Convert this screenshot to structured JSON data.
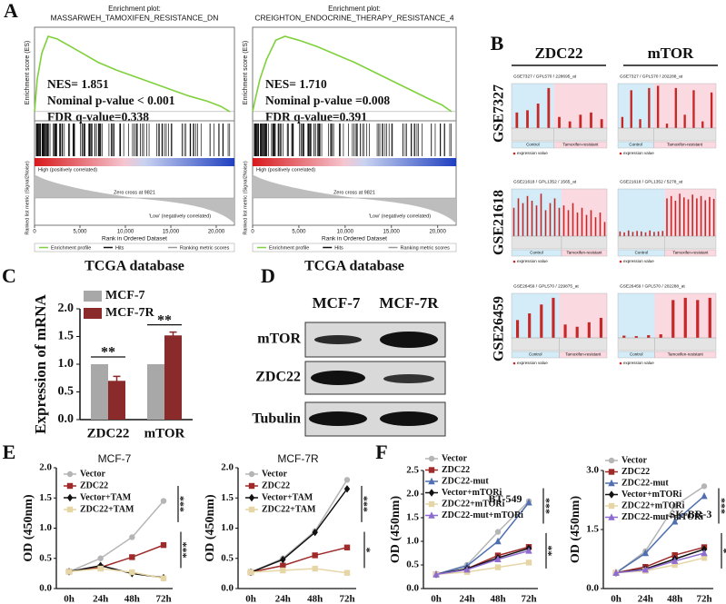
{
  "panel_labels": [
    "A",
    "B",
    "C",
    "D",
    "E",
    "F"
  ],
  "panel_b": {
    "columns": [
      "ZDC22",
      "mTOR"
    ],
    "rows": [
      "GSE7327",
      "GSE21618",
      "GSE26459"
    ]
  },
  "panel_d": {
    "lanes": [
      "MCF-7",
      "MCF-7R"
    ],
    "proteins": [
      "mTOR",
      "ZDC22",
      "Tubulin"
    ]
  },
  "chart_data": [
    {
      "type": "gsea",
      "title": "Enrichment plot:",
      "subtitle": "MASSARWEH_TAMOXIFEN_RESISTANCE_DN",
      "ylabel": "Enrichment score (ES)",
      "ylabel2": "Ranked list metric (Signal2Noise)",
      "xlabel": "Rank in Ordered Dataset",
      "x": [
        0,
        300,
        800,
        1500,
        2500,
        3500,
        5000,
        7000,
        9000,
        11000,
        13000,
        15000,
        17000,
        19000,
        20500,
        21500
      ],
      "values": [
        0,
        0.25,
        0.45,
        0.58,
        0.56,
        0.52,
        0.46,
        0.38,
        0.32,
        0.27,
        0.22,
        0.17,
        0.12,
        0.08,
        0.04,
        0
      ],
      "color": "#7fd13b",
      "xlim": [
        0,
        22000
      ],
      "ylim": [
        -0.05,
        0.65
      ],
      "xticks": [
        0,
        {
          "value": 5000,
          "label": "5,000"
        },
        {
          "value": 10000,
          "label": "10,000"
        },
        {
          "value": 15000,
          "label": "15,000"
        },
        {
          "value": 20000,
          "label": "20,000"
        }
      ],
      "annotations": [
        "NES= 1.851",
        "Nominal p-value < 0.001",
        "FDR q-value=0.338"
      ],
      "metric_labels": [
        "High (positively correlated)",
        "Zero cross at 9821",
        "'Low' (negatively correlated)"
      ],
      "legend": [
        "Enrichment profile",
        "Hits",
        "Ranking metric scores"
      ],
      "caption": "TCGA database"
    },
    {
      "type": "gsea",
      "title": "Enrichment plot:",
      "subtitle": "CREIGHTON_ENDOCRINE_THERAPY_RESISTANCE_4",
      "ylabel": "Enrichment score (ES)",
      "ylabel2": "Ranked list metric (Signal2Noise)",
      "xlabel": "Rank in Ordered Dataset",
      "x": [
        0,
        300,
        800,
        1500,
        2500,
        3500,
        5000,
        7000,
        9000,
        11000,
        13000,
        15000,
        17000,
        19000,
        20500,
        21500
      ],
      "values": [
        0,
        0.1,
        0.25,
        0.4,
        0.55,
        0.58,
        0.55,
        0.5,
        0.44,
        0.38,
        0.31,
        0.24,
        0.17,
        0.1,
        0.05,
        0
      ],
      "color": "#7fd13b",
      "xlim": [
        0,
        22000
      ],
      "ylim": [
        -0.05,
        0.65
      ],
      "xticks": [
        0,
        {
          "value": 5000,
          "label": "5,000"
        },
        {
          "value": 10000,
          "label": "10,000"
        },
        {
          "value": 15000,
          "label": "15,000"
        },
        {
          "value": 20000,
          "label": "20,000"
        }
      ],
      "annotations": [
        "NES= 1.710",
        "Nominal p-value =0.008",
        "FDR q-value=0.391"
      ],
      "metric_labels": [
        "High (positively correlated)",
        "Zero cross at 9821",
        "'Low' (negatively correlated)"
      ],
      "legend": [
        "Enrichment profile",
        "Hits",
        "Ranking metric scores"
      ],
      "caption": "TCGA database"
    },
    {
      "type": "mini",
      "title": "GSE7327 / GPL570 / 228695_at",
      "ylim": [
        0,
        100
      ],
      "color": "#c62828",
      "legend": "expression value",
      "series": [
        {
          "name": "Control",
          "values": [
            35,
            40,
            55,
            90
          ]
        },
        {
          "name": "Tamoxifen-resistant",
          "values": [
            25,
            15,
            30,
            35,
            20
          ]
        }
      ]
    },
    {
      "type": "mini",
      "title": "GSE7327 / GPL570 / 202288_at",
      "ylim": [
        0,
        100
      ],
      "color": "#c62828",
      "legend": "expression value",
      "series": [
        {
          "name": "Control",
          "values": [
            25,
            85,
            20,
            90
          ]
        },
        {
          "name": "Tamoxifen-resistant",
          "values": [
            95,
            10,
            90,
            30,
            85,
            15,
            80
          ]
        }
      ]
    },
    {
      "type": "mini",
      "title": "GSE21618 / GPL1352 / 1565_at",
      "ylim": [
        0,
        100
      ],
      "color": "#c62828",
      "legend": "expression value",
      "series": [
        {
          "name": "Control",
          "values": [
            60,
            80,
            70,
            85,
            75,
            65,
            90,
            55,
            70,
            80,
            60
          ]
        },
        {
          "name": "Tamoxifen-resistant",
          "values": [
            65,
            55,
            70,
            50,
            60,
            45,
            55,
            40,
            50,
            30
          ]
        }
      ]
    },
    {
      "type": "mini",
      "title": "GSE21618 / GPL1352 / 5278_at",
      "ylim": [
        0,
        100
      ],
      "color": "#c62828",
      "legend": "expression value",
      "series": [
        {
          "name": "Control",
          "values": [
            10,
            8,
            12,
            9,
            11,
            10,
            8,
            12,
            9,
            10,
            11
          ]
        },
        {
          "name": "Tamoxifen-resistant",
          "values": [
            80,
            85,
            75,
            90,
            82,
            78,
            88,
            80,
            85,
            76,
            83,
            79
          ]
        }
      ]
    },
    {
      "type": "mini",
      "title": "GSE26459 / GPL570 / 229875_at",
      "ylim": [
        0,
        100
      ],
      "color": "#c62828",
      "legend": "expression value",
      "series": [
        {
          "name": "Control",
          "values": [
            40,
            55,
            75,
            90
          ]
        },
        {
          "name": "Tamoxifen-resistant",
          "values": [
            30,
            25,
            35,
            45
          ]
        }
      ]
    },
    {
      "type": "mini",
      "title": "GSE26459 / GPL570 / 202288_at",
      "ylim": [
        0,
        100
      ],
      "color": "#c62828",
      "legend": "expression value",
      "series": [
        {
          "name": "Control",
          "values": [
            5,
            4,
            6
          ]
        },
        {
          "name": "Tamoxifen-resistant",
          "values": [
            8,
            85,
            90,
            85,
            90
          ]
        }
      ]
    },
    {
      "type": "bar",
      "ylabel": "Expression of mRNA",
      "categories": [
        "ZDC22",
        "mTOR"
      ],
      "series": [
        {
          "name": "MCF-7",
          "color": "#a8a8a8",
          "values": [
            1.0,
            1.0
          ]
        },
        {
          "name": "MCF-7R",
          "color": "#8b2a2a",
          "values": [
            0.7,
            1.52
          ],
          "errors": [
            0.08,
            0.06
          ]
        }
      ],
      "ylim": [
        0,
        2.0
      ],
      "yticks": [
        {
          "value": 0,
          "label": "0.0"
        },
        0.5,
        {
          "value": 1,
          "label": "1.0"
        },
        1.5,
        {
          "value": 2,
          "label": "2.0"
        }
      ],
      "significance": [
        "**",
        "**"
      ]
    },
    {
      "type": "line",
      "title": "MCF-7",
      "ylabel": "OD (450nm)",
      "categories": [
        "0h",
        "24h",
        "48h",
        "72h"
      ],
      "series": [
        {
          "name": "Vector",
          "color": "#b5b5b5",
          "marker": "circle",
          "values": [
            0.28,
            0.5,
            0.85,
            1.45
          ]
        },
        {
          "name": "ZDC22",
          "color": "#9e2a2a",
          "marker": "square",
          "values": [
            0.28,
            0.35,
            0.52,
            0.72
          ]
        },
        {
          "name": "Vector+TAM",
          "color": "#111111",
          "marker": "diamond",
          "values": [
            0.28,
            0.38,
            0.25,
            0.18
          ]
        },
        {
          "name": "ZDC22+TAM",
          "color": "#e6d6a6",
          "marker": "square",
          "values": [
            0.28,
            0.33,
            0.27,
            0.17
          ]
        }
      ],
      "ylim": [
        0,
        2.0
      ],
      "yticks": [
        {
          "value": 0,
          "label": "0.0"
        },
        0.5,
        {
          "value": 1,
          "label": "1.0"
        },
        1.5,
        {
          "value": 2,
          "label": "2.0"
        }
      ],
      "significance": [
        "***",
        "***"
      ]
    },
    {
      "type": "line",
      "title": "MCF-7R",
      "ylabel": "OD (450nm)",
      "categories": [
        "0h",
        "24h",
        "48h",
        "72h"
      ],
      "series": [
        {
          "name": "Vector",
          "color": "#b5b5b5",
          "marker": "circle",
          "values": [
            0.27,
            0.5,
            0.95,
            1.8
          ]
        },
        {
          "name": "ZDC22",
          "color": "#9e2a2a",
          "marker": "square",
          "values": [
            0.27,
            0.38,
            0.55,
            0.68
          ]
        },
        {
          "name": "Vector+TAM",
          "color": "#111111",
          "marker": "diamond",
          "values": [
            0.27,
            0.48,
            0.93,
            1.65
          ]
        },
        {
          "name": "ZDC22+TAM",
          "color": "#e6d6a6",
          "marker": "square",
          "values": [
            0.27,
            0.3,
            0.33,
            0.26
          ]
        }
      ],
      "ylim": [
        0,
        2.0
      ],
      "yticks": [
        {
          "value": 0,
          "label": "0.0"
        },
        0.5,
        {
          "value": 1,
          "label": "1.0"
        },
        1.5,
        {
          "value": 2,
          "label": "2.0"
        }
      ],
      "significance": [
        "***",
        "*"
      ]
    },
    {
      "type": "line",
      "title": "BT-549",
      "ylabel": "OD (450nm)",
      "categories": [
        "0h",
        "24h",
        "48h",
        "72h"
      ],
      "series": [
        {
          "name": "Vector",
          "color": "#b5b5b5",
          "marker": "circle",
          "values": [
            0.3,
            0.5,
            1.2,
            1.85
          ]
        },
        {
          "name": "ZDC22",
          "color": "#9e2a2a",
          "marker": "square",
          "values": [
            0.3,
            0.42,
            0.7,
            0.88
          ]
        },
        {
          "name": "ZDC22-mut",
          "color": "#4f6fb0",
          "marker": "triangle",
          "values": [
            0.3,
            0.48,
            1.0,
            1.82
          ]
        },
        {
          "name": "Vector+mTORi",
          "color": "#111111",
          "marker": "diamond",
          "values": [
            0.3,
            0.42,
            0.65,
            0.85
          ]
        },
        {
          "name": "ZDC22+mTORi",
          "color": "#e6d6a6",
          "marker": "square",
          "values": [
            0.3,
            0.35,
            0.45,
            0.55
          ]
        },
        {
          "name": "ZDC22-mut+mTORi",
          "color": "#8e6bd1",
          "marker": "triangle",
          "values": [
            0.3,
            0.4,
            0.62,
            0.8
          ]
        }
      ],
      "ylim": [
        0,
        2.5
      ],
      "yticks": [
        {
          "value": 0,
          "label": "0.0"
        },
        0.5,
        {
          "value": 1,
          "label": "1.0"
        },
        1.5,
        {
          "value": 2,
          "label": "2.0"
        },
        2.5
      ],
      "significance": [
        "***",
        "**"
      ]
    },
    {
      "type": "line",
      "title": "SK-BR-3",
      "ylabel": "OD (450nm)",
      "categories": [
        "0h",
        "24h",
        "48h",
        "72h"
      ],
      "series": [
        {
          "name": "Vector",
          "color": "#b5b5b5",
          "marker": "circle",
          "values": [
            0.4,
            0.95,
            2.1,
            2.6
          ]
        },
        {
          "name": "ZDC22",
          "color": "#9e2a2a",
          "marker": "square",
          "values": [
            0.4,
            0.55,
            0.85,
            1.05
          ]
        },
        {
          "name": "ZDC22-mut",
          "color": "#4f6fb0",
          "marker": "triangle",
          "values": [
            0.4,
            0.9,
            1.7,
            2.35
          ]
        },
        {
          "name": "Vector+mTORi",
          "color": "#111111",
          "marker": "diamond",
          "values": [
            0.4,
            0.5,
            0.75,
            1.0
          ]
        },
        {
          "name": "ZDC22+mTORi",
          "color": "#e6d6a6",
          "marker": "square",
          "values": [
            0.4,
            0.45,
            0.6,
            0.78
          ]
        },
        {
          "name": "ZDC22-mut+mTORi",
          "color": "#8e6bd1",
          "marker": "triangle",
          "values": [
            0.4,
            0.48,
            0.7,
            0.9
          ]
        }
      ],
      "ylim": [
        0,
        3.0
      ],
      "yticks": [
        {
          "value": 0,
          "label": "0.0"
        },
        1.5,
        {
          "value": 3,
          "label": "3.0"
        }
      ],
      "significance": [
        "***",
        "*"
      ]
    }
  ]
}
